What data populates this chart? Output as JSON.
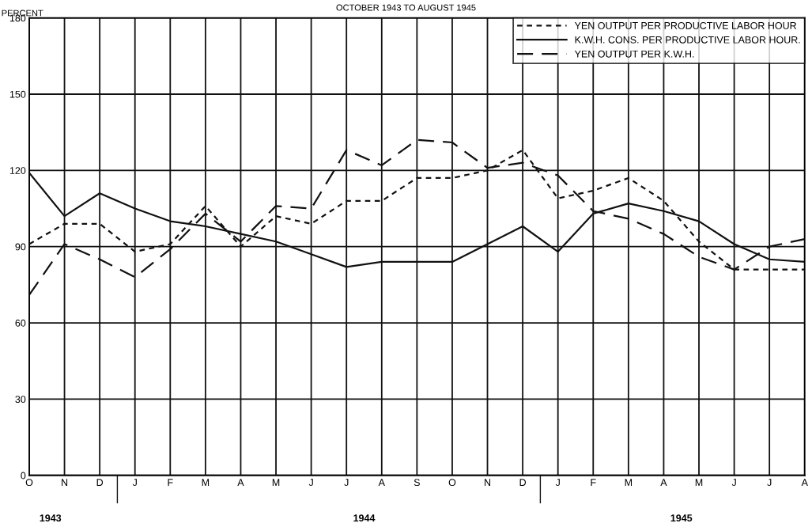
{
  "chart_data": {
    "type": "line",
    "title": "OCTOBER 1943 TO AUGUST 1945",
    "ylabel": "PERCENT",
    "categories": [
      "O",
      "N",
      "D",
      "J",
      "F",
      "M",
      "A",
      "M",
      "J",
      "J",
      "A",
      "S",
      "O",
      "N",
      "D",
      "J",
      "F",
      "M",
      "A",
      "M",
      "J",
      "J",
      "A"
    ],
    "series": [
      {
        "name": "YEN OUTPUT PER PRODUCTIVE LABOR HOUR",
        "color": "#111111",
        "line_style": "dotted",
        "values": [
          91,
          99,
          99,
          88,
          91,
          106,
          90,
          102,
          99,
          108,
          108,
          117,
          117,
          120,
          128,
          109,
          112,
          117,
          108,
          92,
          81,
          81,
          81
        ]
      },
      {
        "name": "K.W.H. CONS. PER PRODUCTIVE LABOR HOUR.",
        "color": "#111111",
        "line_style": "solid",
        "values": [
          119,
          102,
          111,
          105,
          100,
          98,
          95,
          92,
          87,
          82,
          84,
          84,
          84,
          91,
          98,
          88,
          103,
          107,
          104,
          100,
          91,
          85,
          84
        ]
      },
      {
        "name": "YEN OUTPUT PER K.W.H.",
        "color": "#111111",
        "line_style": "dashed",
        "values": [
          71,
          91,
          85,
          78,
          89,
          103,
          92,
          106,
          105,
          128,
          122,
          132,
          131,
          121,
          123,
          118,
          104,
          101,
          95,
          86,
          81,
          90,
          93
        ]
      }
    ],
    "ylim": [
      0,
      180
    ],
    "yticks": [
      0,
      30,
      60,
      90,
      120,
      150,
      180
    ],
    "grid": true,
    "legend": "top right",
    "marker": "none",
    "annotations": [
      "1943",
      "1944",
      "1945"
    ]
  }
}
